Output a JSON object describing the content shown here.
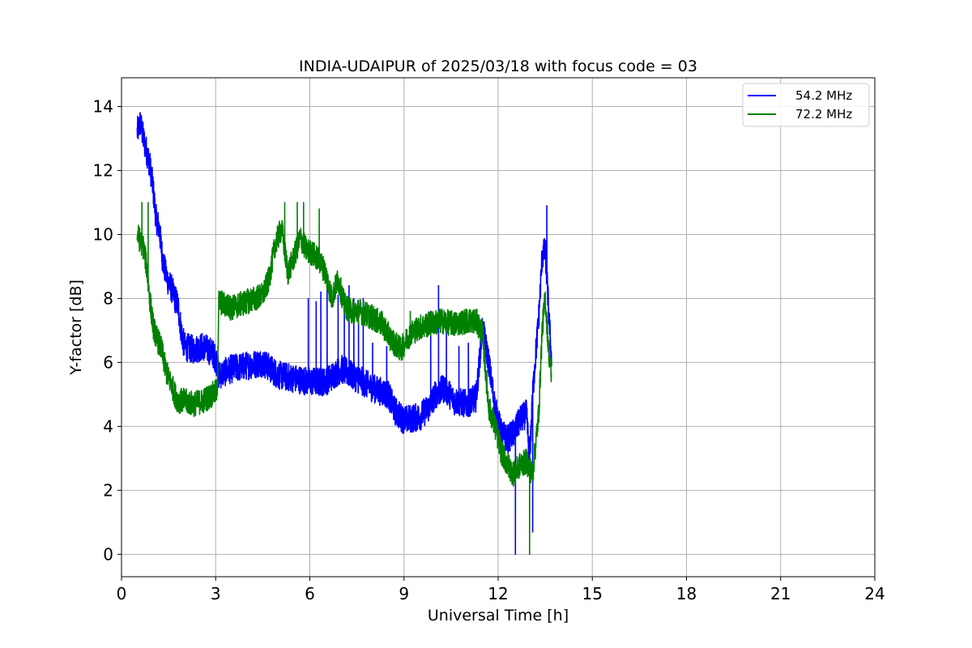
{
  "chart_data": {
    "type": "line",
    "title": "INDIA-UDAIPUR of 2025/03/18 with focus code = 03",
    "xlabel": "Universal Time [h]",
    "ylabel": "Y-factor [dB]",
    "xlim": [
      0,
      24
    ],
    "ylim": [
      -0.7,
      14.9
    ],
    "xticks": [
      0,
      3,
      6,
      9,
      12,
      15,
      18,
      21,
      24
    ],
    "yticks": [
      0,
      2,
      4,
      6,
      8,
      10,
      12,
      14
    ],
    "grid": true,
    "legend_position": "top-right",
    "series": [
      {
        "name": "54.2 MHz",
        "color": "#0000ff",
        "noise": 0.45,
        "x": [
          0.5,
          0.6,
          0.7,
          0.8,
          0.9,
          1.0,
          1.1,
          1.2,
          1.3,
          1.4,
          1.5,
          1.6,
          1.7,
          1.8,
          1.9,
          2.0,
          2.3,
          2.6,
          2.9,
          3.05,
          3.1,
          3.5,
          4.0,
          4.5,
          5.0,
          5.5,
          6.0,
          6.5,
          7.0,
          7.5,
          8.0,
          8.5,
          8.7,
          9.0,
          9.5,
          9.8,
          10.0,
          10.3,
          10.6,
          11.0,
          11.3,
          11.5,
          11.7,
          11.9,
          12.1,
          12.3,
          12.5,
          12.7,
          12.9,
          13.0,
          13.1,
          13.2,
          13.3,
          13.4,
          13.5,
          13.6,
          13.7
        ],
        "values": [
          13.2,
          13.5,
          13.0,
          12.6,
          12.2,
          11.5,
          10.5,
          10.2,
          9.3,
          8.8,
          8.5,
          8.3,
          8.0,
          7.8,
          7.0,
          6.5,
          6.4,
          6.5,
          6.3,
          6.0,
          5.6,
          5.8,
          5.9,
          6.0,
          5.6,
          5.5,
          5.4,
          5.4,
          5.8,
          5.5,
          5.2,
          5.0,
          4.5,
          4.2,
          4.3,
          4.6,
          5.0,
          5.2,
          4.8,
          4.7,
          4.9,
          7.1,
          6.0,
          4.6,
          3.8,
          3.6,
          3.8,
          4.2,
          4.4,
          3.0,
          5.0,
          6.3,
          7.5,
          9.3,
          9.5,
          7.8,
          6.0
        ],
        "bursts": [
          [
            5.95,
            8.0
          ],
          [
            6.2,
            7.9
          ],
          [
            6.35,
            8.2
          ],
          [
            6.55,
            8.6
          ],
          [
            6.9,
            8.1
          ],
          [
            7.1,
            7.8
          ],
          [
            7.25,
            8.4
          ],
          [
            7.4,
            8.0
          ],
          [
            7.55,
            7.7
          ],
          [
            7.7,
            8.0
          ],
          [
            8.0,
            6.6
          ],
          [
            8.45,
            6.5
          ],
          [
            9.85,
            7.6
          ],
          [
            10.1,
            8.4
          ],
          [
            10.35,
            7.2
          ],
          [
            10.75,
            6.5
          ],
          [
            11.05,
            6.6
          ],
          [
            13.55,
            10.9
          ],
          [
            12.55,
            0.0
          ],
          [
            13.1,
            0.7
          ]
        ]
      },
      {
        "name": "72.2 MHz",
        "color": "#008000",
        "noise": 0.4,
        "x": [
          0.5,
          0.6,
          0.7,
          0.8,
          0.9,
          1.0,
          1.1,
          1.2,
          1.3,
          1.4,
          1.5,
          1.6,
          1.7,
          1.8,
          2.0,
          2.3,
          2.6,
          2.9,
          3.05,
          3.1,
          3.5,
          4.0,
          4.5,
          4.7,
          4.9,
          5.1,
          5.3,
          5.5,
          5.7,
          5.9,
          6.1,
          6.3,
          6.5,
          6.7,
          6.9,
          7.1,
          7.3,
          7.6,
          8.0,
          8.3,
          8.6,
          8.9,
          9.2,
          9.5,
          9.8,
          10.2,
          10.6,
          11.0,
          11.3,
          11.5,
          11.7,
          11.9,
          12.1,
          12.3,
          12.5,
          12.7,
          12.9,
          13.1,
          13.3,
          13.4,
          13.5,
          13.6,
          13.7
        ],
        "values": [
          10.0,
          9.8,
          9.6,
          9.0,
          8.0,
          7.2,
          6.8,
          6.6,
          6.3,
          5.8,
          5.5,
          5.3,
          5.0,
          4.8,
          4.8,
          4.7,
          4.8,
          5.0,
          5.1,
          7.9,
          7.7,
          7.9,
          8.1,
          8.6,
          9.7,
          10.2,
          8.8,
          9.3,
          9.9,
          9.5,
          9.4,
          9.2,
          8.8,
          8.0,
          8.6,
          7.8,
          7.6,
          7.6,
          7.4,
          7.2,
          6.7,
          6.4,
          6.9,
          7.1,
          7.2,
          7.3,
          7.2,
          7.3,
          7.3,
          6.9,
          4.6,
          4.0,
          3.2,
          2.8,
          2.5,
          2.8,
          2.9,
          2.5,
          4.5,
          7.0,
          8.0,
          6.5,
          5.5
        ],
        "bursts": [
          [
            0.65,
            11.0
          ],
          [
            0.85,
            11.0
          ],
          [
            5.2,
            11.0
          ],
          [
            5.6,
            11.0
          ],
          [
            5.8,
            11.0
          ],
          [
            6.3,
            10.8
          ],
          [
            9.2,
            7.6
          ],
          [
            13.0,
            0.0
          ]
        ]
      }
    ]
  }
}
